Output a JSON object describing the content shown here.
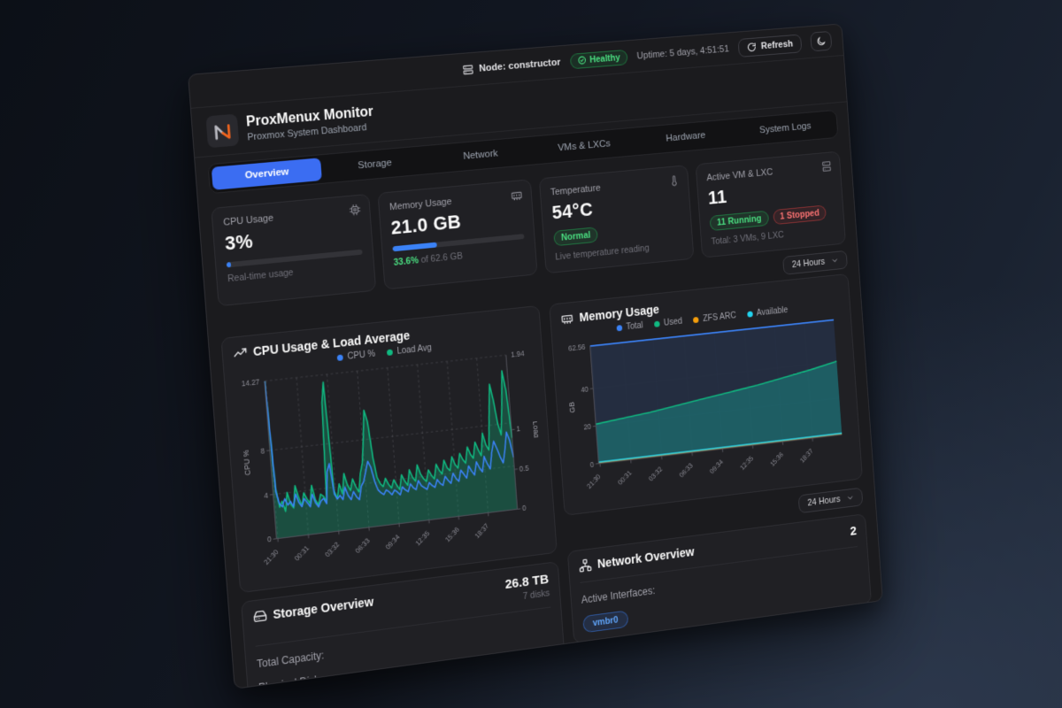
{
  "topbar": {
    "node_label": "Node: constructor",
    "health": "Healthy",
    "uptime": "Uptime: 5 days, 4:51:51",
    "refresh": "Refresh"
  },
  "header": {
    "title": "ProxMenux Monitor",
    "subtitle": "Proxmox System Dashboard"
  },
  "tabs": {
    "items": [
      {
        "label": "Overview",
        "active": true
      },
      {
        "label": "Storage",
        "active": false
      },
      {
        "label": "Network",
        "active": false
      },
      {
        "label": "VMs & LXCs",
        "active": false
      },
      {
        "label": "Hardware",
        "active": false
      },
      {
        "label": "System Logs",
        "active": false
      }
    ]
  },
  "summary_cards": {
    "cpu": {
      "title": "CPU Usage",
      "value": "3%",
      "percent": 3,
      "caption": "Real-time usage"
    },
    "memory": {
      "title": "Memory Usage",
      "value": "21.0 GB",
      "percent": 33.6,
      "caption_highlight": "33.6%",
      "caption_rest": " of 62.6 GB"
    },
    "temperature": {
      "title": "Temperature",
      "value": "54°C",
      "badge": "Normal",
      "caption": "Live temperature reading"
    },
    "vm": {
      "title": "Active VM & LXC",
      "value": "11",
      "running_badge": "11 Running",
      "stopped_badge": "1 Stopped",
      "caption": "Total: 3 VMs, 9 LXC"
    }
  },
  "timeframe": {
    "label": "24 Hours"
  },
  "timeframe2": {
    "label": "24 Hours"
  },
  "storage_overview": {
    "title": "Storage Overview",
    "stat_value": "26.8 TB",
    "stat_caption": "7 disks",
    "rows": [
      {
        "label": "Total Capacity:"
      },
      {
        "label": "Physical Disks:"
      }
    ]
  },
  "network_overview": {
    "title": "Network Overview",
    "stat_value": "2",
    "label": "Active Interfaces:",
    "badges": [
      {
        "label": "vmbr0"
      }
    ]
  },
  "colors": {
    "accent_blue": "#3b6df2",
    "line_blue": "#3b82f6",
    "line_green": "#10b981",
    "line_orange": "#f59e0b",
    "line_cyan": "#22d3ee",
    "healthy_green": "#4ade80",
    "stopped_red": "#f87171"
  },
  "chart_data": [
    {
      "id": "cpu_load",
      "type": "line",
      "title": "CPU Usage & Load Average",
      "grid": "dashed",
      "legend": [
        {
          "label": "CPU %",
          "color": "#3b82f6"
        },
        {
          "label": "Load Avg",
          "color": "#10b981"
        }
      ],
      "x_labels": [
        "21:30",
        "00:31",
        "03:32",
        "06:33",
        "09:34",
        "12:35",
        "15:36",
        "18:37"
      ],
      "left_axis": {
        "label": "CPU %",
        "ticks": [
          0,
          4,
          8
        ],
        "max": 14.27,
        "max_label": "14.27"
      },
      "right_axis": {
        "label": "Load",
        "ticks": [
          0,
          0.5,
          1
        ],
        "max": 1.94,
        "max_label": "1.94"
      },
      "series": [
        {
          "name": "Load Avg",
          "axis": "right",
          "color": "#10b981",
          "fill": "rgba(16,185,129,0.30)",
          "values": [
            1.94,
            0.62,
            0.38,
            0.45,
            0.32,
            0.55,
            0.4,
            0.35,
            0.62,
            0.48,
            0.36,
            0.52,
            0.44,
            0.38,
            0.6,
            0.42,
            0.35,
            0.48,
            0.45,
            0.38,
            1.6,
            1.85,
            0.5,
            0.4,
            0.58,
            0.45,
            0.7,
            0.55,
            0.48,
            0.62,
            0.52,
            0.45,
            0.68,
            0.8,
            1.1,
            1.45,
            1.3,
            0.85,
            0.6,
            0.52,
            0.48,
            0.58,
            0.5,
            0.45,
            0.55,
            0.48,
            0.42,
            0.6,
            0.52,
            0.46,
            0.65,
            0.55,
            0.5,
            0.7,
            0.58,
            0.52,
            0.48,
            0.62,
            0.55,
            0.5,
            0.68,
            0.6,
            0.55,
            0.72,
            0.62,
            0.58,
            0.75,
            0.65,
            0.6,
            0.78,
            0.7,
            0.65,
            0.85,
            0.75,
            0.7,
            0.9,
            0.8,
            0.72,
            1.0,
            0.85,
            0.78,
            1.2,
            1.6,
            1.4,
            1.1,
            0.95,
            1.3,
            1.75,
            1.5,
            0.9
          ]
        },
        {
          "name": "CPU %",
          "axis": "left",
          "color": "#3b82f6",
          "values": [
            14.27,
            4.2,
            3.1,
            2.8,
            3.5,
            2.9,
            3.2,
            2.7,
            3.8,
            3.0,
            2.6,
            3.3,
            2.9,
            2.5,
            3.6,
            2.8,
            2.4,
            2.9,
            3.1,
            2.6,
            5.5,
            6.2,
            3.4,
            2.9,
            3.2,
            2.8,
            3.9,
            3.1,
            2.7,
            3.4,
            2.9,
            2.6,
            3.8,
            4.2,
            5.1,
            6.0,
            5.4,
            4.1,
            3.3,
            3.0,
            2.8,
            3.2,
            3.0,
            2.7,
            3.1,
            2.9,
            2.6,
            3.3,
            3.0,
            2.8,
            3.5,
            3.1,
            2.9,
            3.7,
            3.2,
            3.0,
            2.8,
            3.4,
            3.1,
            2.9,
            3.6,
            3.2,
            3.0,
            3.8,
            3.4,
            3.1,
            4.0,
            3.5,
            3.2,
            4.2,
            3.8,
            3.4,
            4.5,
            4.0,
            3.6,
            4.8,
            4.2,
            3.8,
            5.2,
            4.5,
            4.0,
            5.5,
            6.5,
            5.8,
            5.0,
            4.4,
            5.6,
            7.2,
            6.4,
            4.8
          ]
        }
      ]
    },
    {
      "id": "memory",
      "type": "area",
      "title": "Memory Usage",
      "grid": "solid",
      "legend": [
        {
          "label": "Total",
          "color": "#3b82f6"
        },
        {
          "label": "Used",
          "color": "#10b981"
        },
        {
          "label": "ZFS ARC",
          "color": "#f59e0b"
        },
        {
          "label": "Available",
          "color": "#22d3ee"
        }
      ],
      "x_labels": [
        "21:30",
        "00:31",
        "03:32",
        "06:33",
        "09:34",
        "12:35",
        "15:36",
        "18:37"
      ],
      "left_axis": {
        "label": "GB",
        "ticks": [
          0,
          20,
          40
        ],
        "max": 62.56,
        "max_label": "62.56"
      },
      "series": [
        {
          "name": "Total",
          "axis": "left",
          "color": "#3b82f6",
          "fill": "rgba(37,46,66,0.95)",
          "values": [
            62.56,
            62.56,
            62.56,
            62.56,
            62.56,
            62.56,
            62.56,
            62.56,
            62.56,
            62.56
          ]
        },
        {
          "name": "Used",
          "axis": "left",
          "color": "#10b981",
          "fill": "rgba(20,184,166,0.35)",
          "values": [
            21,
            22.5,
            24,
            26,
            28,
            30,
            32,
            34.5,
            37,
            40
          ]
        },
        {
          "name": "ZFS ARC",
          "axis": "left",
          "color": "#f59e0b",
          "values": [
            0.4,
            0.4,
            0.4,
            0.4,
            0.4,
            0.4,
            0.4,
            0.4,
            0.4,
            0.4
          ]
        },
        {
          "name": "Available",
          "axis": "left",
          "color": "#22d3ee",
          "values": [
            0.8,
            0.8,
            0.8,
            0.8,
            0.8,
            0.8,
            0.8,
            0.8,
            0.8,
            0.8
          ]
        }
      ]
    }
  ]
}
